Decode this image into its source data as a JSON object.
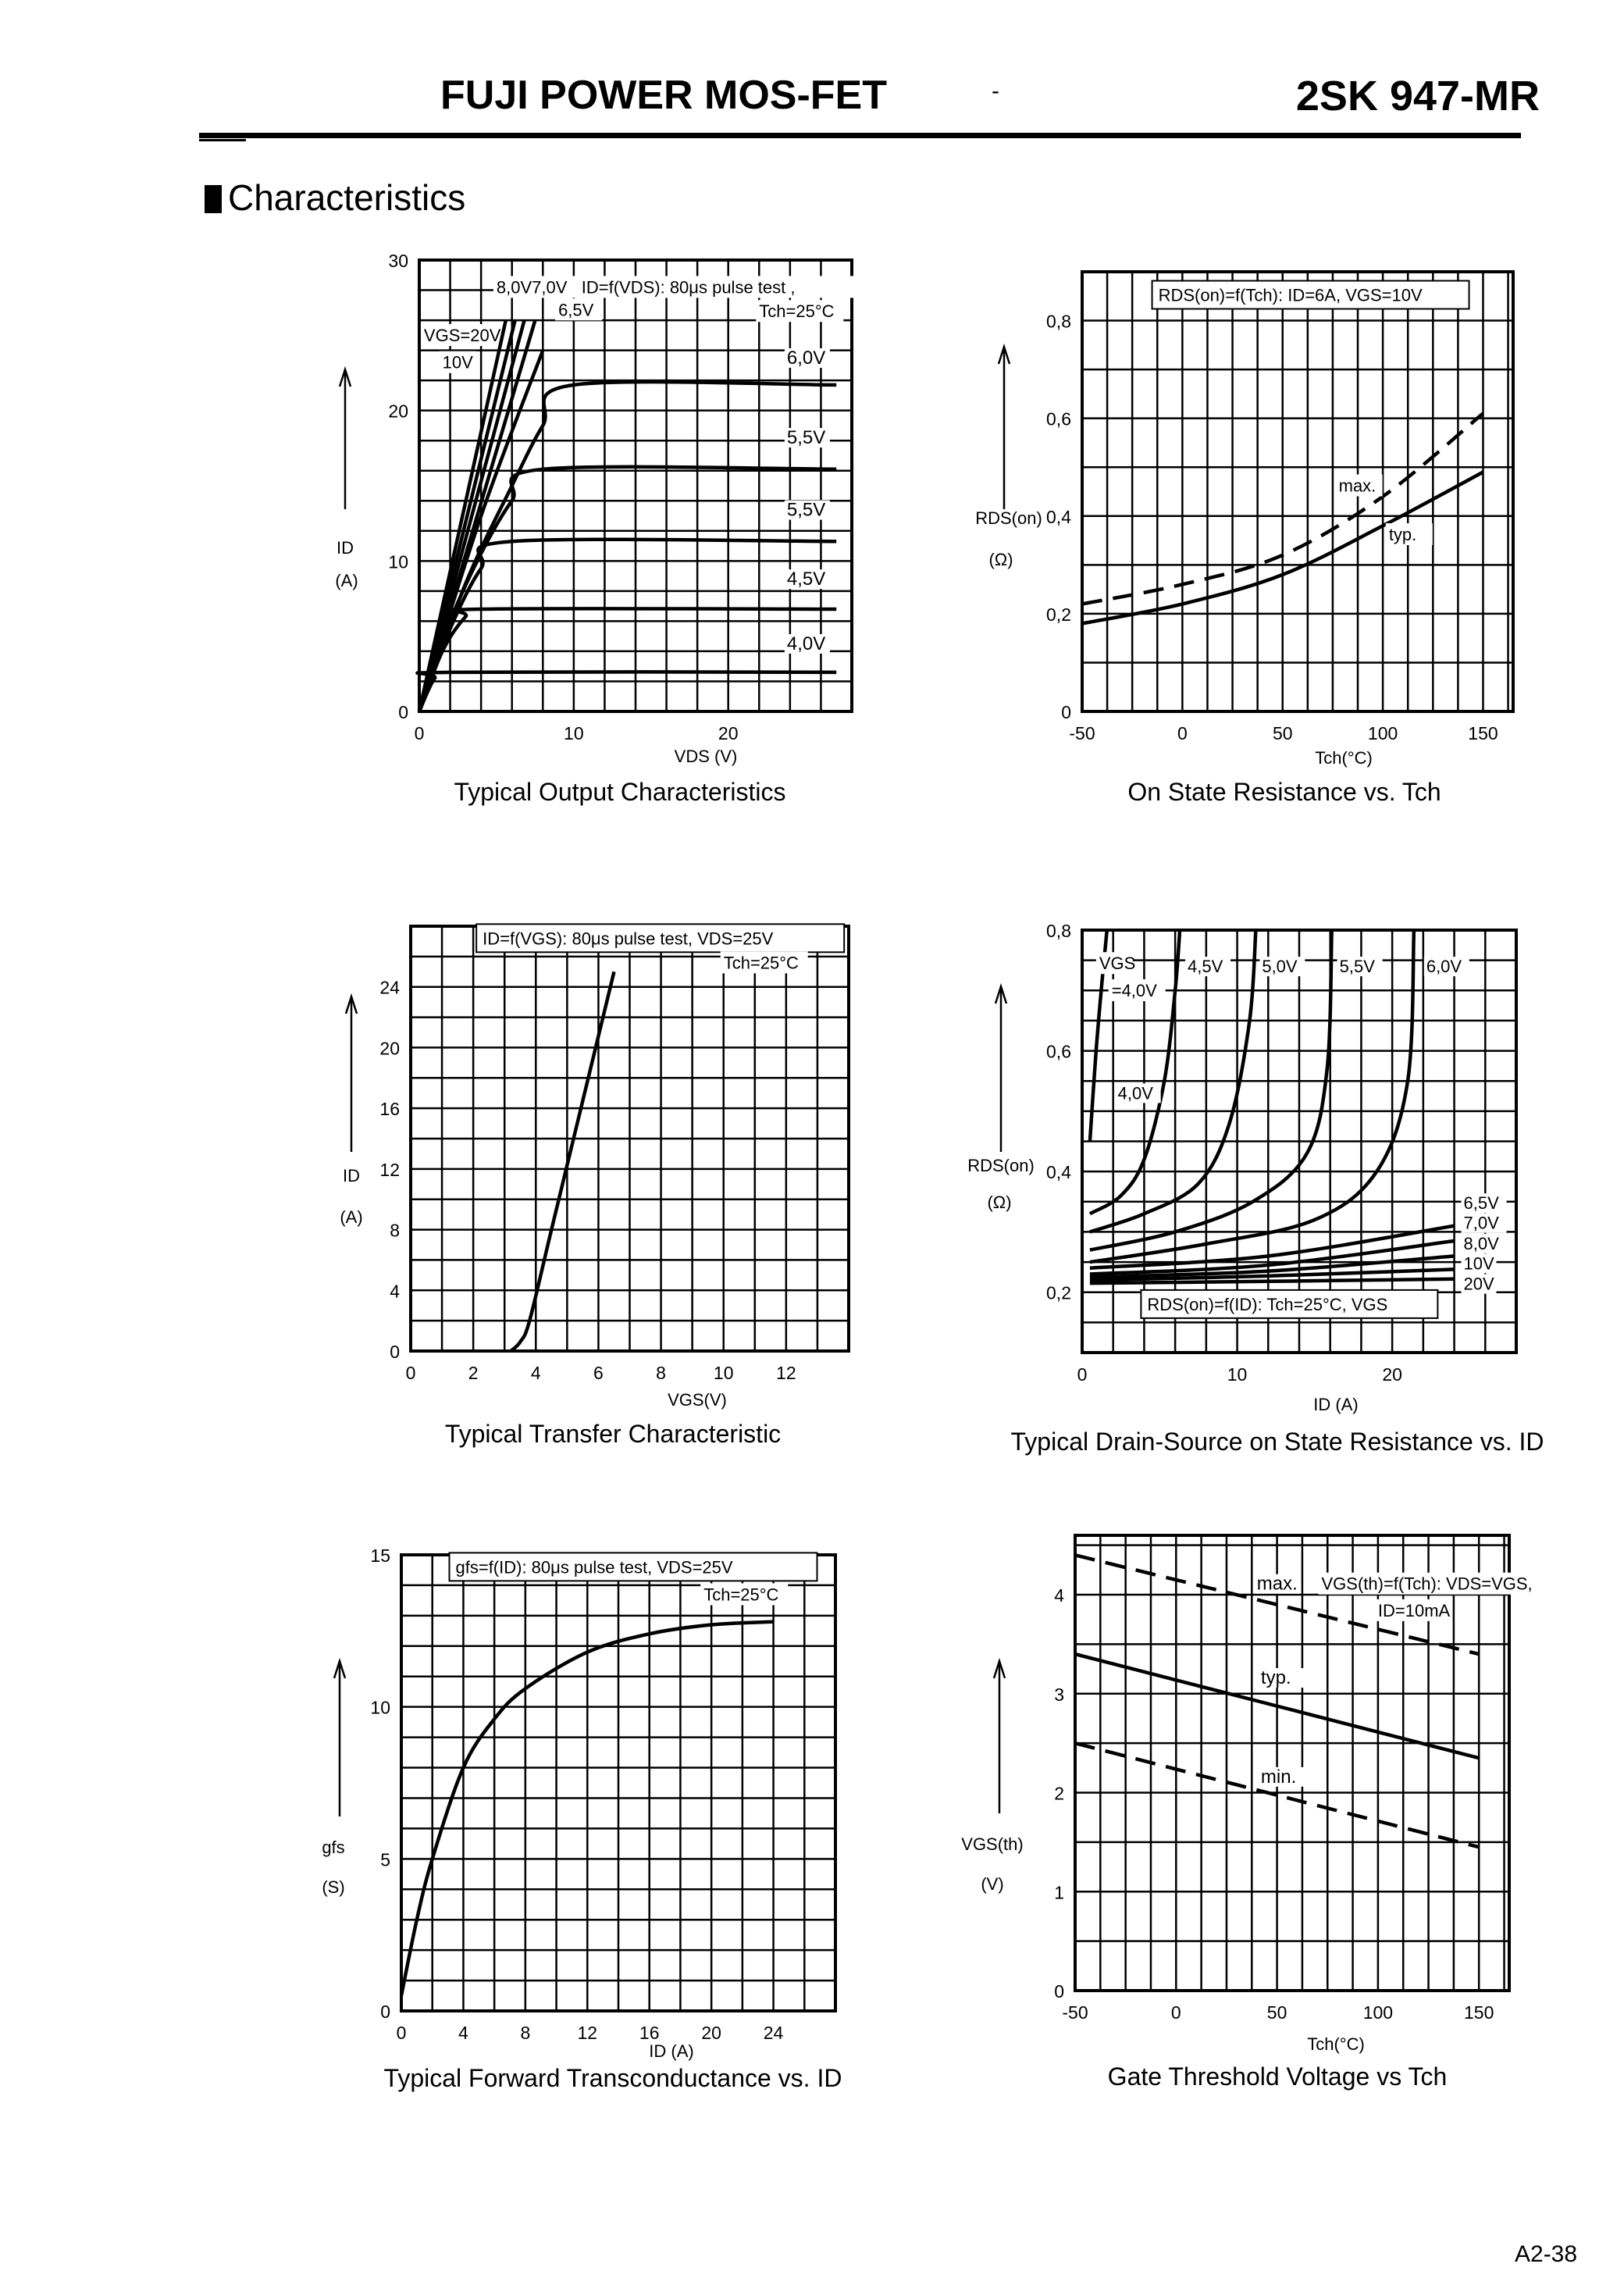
{
  "header": {
    "title": "FUJI POWER MOS-FET",
    "dash": "-",
    "part_number": "2SK 947-MR"
  },
  "section_title": "Characteristics",
  "page_number": "A2-38",
  "chart_data": [
    {
      "type": "line",
      "title": "Typical Output Characteristics",
      "xlabel": "VDS (V)",
      "ylabel": "ID",
      "yunit": "(A)",
      "xlim": [
        0,
        28
      ],
      "ylim": [
        0,
        30
      ],
      "xticks": [
        0,
        10,
        20
      ],
      "yticks": [
        0,
        10,
        20,
        30
      ],
      "grid": true,
      "annotations": [
        "8,0V7,0V",
        "ID=f(VDS): 80μs pulse test ,",
        "6,5V",
        "Tch=25°C",
        "VGS=20V",
        "10V"
      ],
      "series": [
        {
          "name": "4,0V",
          "x": [
            0,
            1,
            2,
            27
          ],
          "y": [
            0,
            2.2,
            2.6,
            2.6
          ]
        },
        {
          "name": "4,5V",
          "x": [
            0,
            1.5,
            3,
            4,
            27
          ],
          "y": [
            0,
            4,
            6.3,
            6.8,
            6.8
          ]
        },
        {
          "name": "5,5V",
          "x": [
            0,
            2,
            4,
            6,
            27
          ],
          "y": [
            0,
            5.5,
            9.5,
            11.3,
            11.3
          ]
        },
        {
          "name": "5,5V",
          "x": [
            0,
            2,
            4,
            6,
            8,
            27
          ],
          "y": [
            0,
            6,
            10.5,
            14,
            16.1,
            16.1
          ]
        },
        {
          "name": "6,0V",
          "x": [
            0,
            3,
            6,
            8,
            10,
            27
          ],
          "y": [
            0,
            8.5,
            15,
            19,
            21.7,
            21.7
          ]
        },
        {
          "name": "6,5V",
          "x": [
            0,
            4,
            8
          ],
          "y": [
            0,
            13,
            24
          ]
        },
        {
          "name": "7,0V",
          "x": [
            0,
            7.5
          ],
          "y": [
            0,
            26
          ]
        },
        {
          "name": "8,0V",
          "x": [
            0,
            6.8
          ],
          "y": [
            0,
            26
          ]
        },
        {
          "name": "10V",
          "x": [
            0,
            6.2
          ],
          "y": [
            0,
            26
          ]
        },
        {
          "name": "VGS=20V",
          "x": [
            0,
            5.6
          ],
          "y": [
            0,
            26
          ]
        }
      ]
    },
    {
      "type": "line",
      "title": "On State Resistance vs. Tch",
      "xlabel": "Tch(°C)",
      "ylabel": "RDS(on)",
      "yunit": "(Ω)",
      "xlim": [
        -50,
        165
      ],
      "ylim": [
        0,
        0.9
      ],
      "xticks": [
        -50,
        0,
        50,
        100,
        150
      ],
      "yticks": [
        0,
        0.2,
        0.4,
        0.6,
        0.8
      ],
      "ytick_labels": [
        "0",
        "0,2",
        "0,4",
        "0,6",
        "0,8"
      ],
      "grid": true,
      "annotations": [
        "RDS(on)=f(Tch): ID=6A, VGS=10V",
        "max.",
        "typ."
      ],
      "series": [
        {
          "name": "max.",
          "style": "dashed",
          "x": [
            -50,
            0,
            50,
            100,
            150
          ],
          "y": [
            0.22,
            0.26,
            0.32,
            0.44,
            0.61
          ]
        },
        {
          "name": "typ.",
          "style": "solid",
          "x": [
            -50,
            0,
            50,
            100,
            150
          ],
          "y": [
            0.18,
            0.22,
            0.28,
            0.38,
            0.49
          ]
        }
      ]
    },
    {
      "type": "line",
      "title": "Typical Transfer Characteristic",
      "xlabel": "VGS(V)",
      "ylabel": "ID",
      "yunit": "(A)",
      "xlim": [
        0,
        14
      ],
      "ylim": [
        0,
        28
      ],
      "xticks": [
        0,
        2,
        4,
        6,
        8,
        10,
        12
      ],
      "yticks": [
        0,
        4,
        8,
        12,
        16,
        20,
        24
      ],
      "grid": true,
      "annotations": [
        "ID=f(VGS): 80μs pulse test, VDS=25V",
        "Tch=25°C"
      ],
      "series": [
        {
          "x": [
            3.2,
            3.5,
            3.8,
            4.5,
            5.5,
            6.5
          ],
          "y": [
            0,
            0.6,
            2,
            8,
            16.5,
            25
          ]
        }
      ]
    },
    {
      "type": "line",
      "title": "Typical Drain-Source on State Resistance vs. ID",
      "xlabel": "ID (A)",
      "ylabel": "RDS(on)",
      "yunit": "(Ω)",
      "xlim": [
        0,
        28
      ],
      "ylim": [
        0.1,
        0.8
      ],
      "xticks": [
        0,
        10,
        20
      ],
      "yticks": [
        0.2,
        0.4,
        0.6,
        0.8
      ],
      "ytick_labels": [
        "0,2",
        "0,4",
        "0,6",
        "0,8"
      ],
      "xtick_labels": [
        "0",
        "10",
        "20"
      ],
      "grid": true,
      "annotations": [
        "VGS",
        "=4,0V",
        "RDS(on)=f(ID): Tch=25°C, VGS"
      ],
      "series": [
        {
          "name": "4,0V",
          "x": [
            0.5,
            0.9,
            1.3,
            1.6
          ],
          "y": [
            0.45,
            0.6,
            0.72,
            0.8
          ]
        },
        {
          "name": "4,5V",
          "x": [
            0.5,
            2.5,
            4,
            5.3,
            6,
            6.3
          ],
          "y": [
            0.33,
            0.36,
            0.42,
            0.55,
            0.7,
            0.8
          ]
        },
        {
          "name": "5,0V",
          "x": [
            0.5,
            4,
            7.5,
            9.5,
            10.8,
            11.2
          ],
          "y": [
            0.3,
            0.33,
            0.38,
            0.48,
            0.65,
            0.8
          ]
        },
        {
          "name": "5,5V",
          "x": [
            0.5,
            6,
            11,
            14.5,
            15.8,
            16.1
          ],
          "y": [
            0.27,
            0.3,
            0.35,
            0.43,
            0.57,
            0.8
          ]
        },
        {
          "name": "6,0V",
          "x": [
            0.5,
            8,
            15,
            19,
            21,
            21.4
          ],
          "y": [
            0.25,
            0.28,
            0.32,
            0.4,
            0.55,
            0.8
          ]
        },
        {
          "name": "6,5V",
          "x": [
            0.5,
            12,
            24
          ],
          "y": [
            0.24,
            0.26,
            0.31
          ]
        },
        {
          "name": "7,0V",
          "x": [
            0.5,
            12,
            24
          ],
          "y": [
            0.23,
            0.245,
            0.285
          ]
        },
        {
          "name": "8,0V",
          "x": [
            0.5,
            12,
            24
          ],
          "y": [
            0.225,
            0.235,
            0.26
          ]
        },
        {
          "name": "10V",
          "x": [
            0.5,
            12,
            24
          ],
          "y": [
            0.22,
            0.227,
            0.238
          ]
        },
        {
          "name": "20V",
          "x": [
            0.5,
            12,
            24
          ],
          "y": [
            0.215,
            0.218,
            0.222
          ]
        }
      ]
    },
    {
      "type": "line",
      "title": "Typical Forward Transconductance vs. ID",
      "xlabel": "ID (A)",
      "ylabel": "gfs",
      "yunit": "(S)",
      "xlim": [
        0,
        28
      ],
      "ylim": [
        0,
        15
      ],
      "xticks": [
        0,
        4,
        8,
        12,
        16,
        20,
        24
      ],
      "yticks": [
        0,
        5,
        10,
        15
      ],
      "grid": true,
      "annotations": [
        "gfs=f(ID): 80μs pulse test, VDS=25V",
        "Tch=25°C"
      ],
      "series": [
        {
          "x": [
            0,
            1,
            2,
            4,
            6,
            8,
            12,
            16,
            20,
            24
          ],
          "y": [
            0.5,
            3,
            5,
            8,
            9.6,
            10.6,
            11.8,
            12.4,
            12.7,
            12.8
          ]
        }
      ]
    },
    {
      "type": "line",
      "title": "Gate Threshold Voltage vs Tch",
      "xlabel": "Tch(°C)",
      "ylabel": "VGS(th)",
      "yunit": "(V)",
      "xlim": [
        -50,
        165
      ],
      "ylim": [
        0,
        4.6
      ],
      "xticks": [
        -50,
        0,
        50,
        100,
        150
      ],
      "yticks": [
        0,
        1,
        2,
        3,
        4
      ],
      "grid": true,
      "annotations": [
        "VGS(th)=f(Tch): VDS=VGS,",
        "ID=10mA"
      ],
      "series": [
        {
          "name": "max.",
          "style": "dashed",
          "x": [
            -50,
            150
          ],
          "y": [
            4.4,
            3.4
          ]
        },
        {
          "name": "typ.",
          "style": "solid",
          "x": [
            -50,
            150
          ],
          "y": [
            3.4,
            2.35
          ]
        },
        {
          "name": "min.",
          "style": "dashed",
          "x": [
            -50,
            150
          ],
          "y": [
            2.5,
            1.45
          ]
        }
      ]
    }
  ]
}
